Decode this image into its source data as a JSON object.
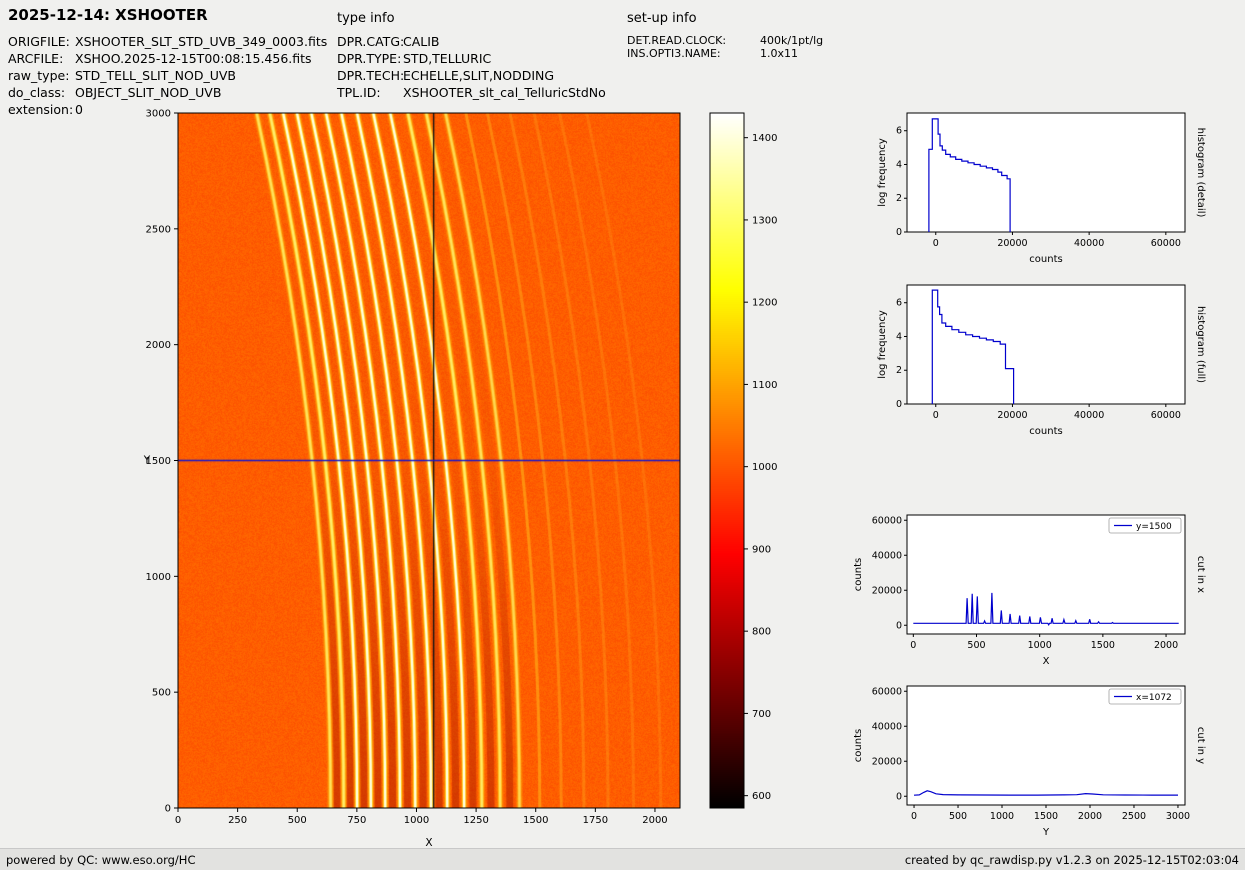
{
  "header": {
    "title": "2025-12-14: XSHOOTER",
    "type_info": "type info",
    "setup_info": "set-up info"
  },
  "metadata": {
    "left": [
      {
        "label": "ORIGFILE:",
        "value": "XSHOOTER_SLT_STD_UVB_349_0003.fits"
      },
      {
        "label": "ARCFILE:",
        "value": "XSHOO.2025-12-15T00:08:15.456.fits"
      },
      {
        "label": "raw_type:",
        "value": "STD_TELL_SLIT_NOD_UVB"
      },
      {
        "label": "do_class:",
        "value": "OBJECT_SLIT_NOD_UVB"
      },
      {
        "label": "extension:",
        "value": "0"
      }
    ],
    "middle": [
      {
        "label": "DPR.CATG:",
        "value": "CALIB"
      },
      {
        "label": "DPR.TYPE:",
        "value": "STD,TELLURIC"
      },
      {
        "label": "DPR.TECH:",
        "value": "ECHELLE,SLIT,NODDING"
      },
      {
        "label": "TPL.ID:",
        "value": "XSHOOTER_slt_cal_TelluricStdNo"
      }
    ],
    "right": [
      {
        "label": "DET.READ.CLOCK:",
        "value": "400k/1pt/lg"
      },
      {
        "label": "INS.OPTI3.NAME:",
        "value": "1.0x11"
      }
    ]
  },
  "footer": {
    "left": "powered by QC: www.eso.org/HC",
    "right": "created by qc_rawdisp.py v1.2.3 on 2025-12-15T02:03:04"
  },
  "chart_data": [
    {
      "name": "raw-frame",
      "type": "heatmap",
      "xlabel": "X",
      "ylabel": "Y",
      "xlim": [
        0,
        2105
      ],
      "ylim": [
        0,
        3000
      ],
      "xticks": [
        0,
        250,
        500,
        750,
        1000,
        1250,
        1500,
        1750,
        2000
      ],
      "yticks": [
        0,
        500,
        1000,
        1500,
        2000,
        2500,
        3000
      ],
      "background_level": 1010,
      "colormap": "hot",
      "colorbar": {
        "vmin": 585,
        "vmax": 1430,
        "ticks": [
          600,
          700,
          800,
          900,
          1000,
          1100,
          1200,
          1300,
          1400
        ]
      },
      "crosshair": {
        "x": 1072,
        "y": 1500,
        "x_color": "#151515",
        "y_color": "#1515cc"
      },
      "orders": [
        {
          "x_bottom": 640,
          "x_top": 330,
          "intensity": 0.72
        },
        {
          "x_bottom": 695,
          "x_top": 385,
          "intensity": 0.88
        },
        {
          "x_bottom": 751,
          "x_top": 441,
          "intensity": 1.0
        },
        {
          "x_bottom": 809,
          "x_top": 499,
          "intensity": 1.0
        },
        {
          "x_bottom": 869,
          "x_top": 559,
          "intensity": 1.0
        },
        {
          "x_bottom": 931,
          "x_top": 621,
          "intensity": 1.0
        },
        {
          "x_bottom": 995,
          "x_top": 685,
          "intensity": 1.0
        },
        {
          "x_bottom": 1061,
          "x_top": 751,
          "intensity": 1.0
        },
        {
          "x_bottom": 1129,
          "x_top": 819,
          "intensity": 0.97
        },
        {
          "x_bottom": 1200,
          "x_top": 890,
          "intensity": 0.92
        },
        {
          "x_bottom": 1274,
          "x_top": 964,
          "intensity": 0.85
        },
        {
          "x_bottom": 1351,
          "x_top": 1041,
          "intensity": 0.75
        },
        {
          "x_bottom": 1432,
          "x_top": 1122,
          "intensity": 0.62
        },
        {
          "x_bottom": 1517,
          "x_top": 1207,
          "intensity": 0.4
        },
        {
          "x_bottom": 1607,
          "x_top": 1297,
          "intensity": 0.28
        },
        {
          "x_bottom": 1702,
          "x_top": 1392,
          "intensity": 0.2
        },
        {
          "x_bottom": 1803,
          "x_top": 1493,
          "intensity": 0.14
        },
        {
          "x_bottom": 1910,
          "x_top": 1600,
          "intensity": 0.1
        },
        {
          "x_bottom": 2024,
          "x_top": 1714,
          "intensity": 0.07
        }
      ]
    },
    {
      "name": "histogram-detail",
      "type": "line",
      "side_label": "histogram (detail)",
      "xlabel": "counts",
      "ylabel": "log frequency",
      "xlim": [
        -7500,
        65000
      ],
      "ylim": [
        0,
        7.05
      ],
      "xticks": [
        0,
        20000,
        40000,
        60000
      ],
      "yticks": [
        0,
        2,
        4,
        6
      ],
      "line_color": "#0000cd",
      "points": [
        [
          -1800,
          0
        ],
        [
          -1800,
          4.9
        ],
        [
          -900,
          4.9
        ],
        [
          -900,
          6.7
        ],
        [
          600,
          6.7
        ],
        [
          600,
          5.8
        ],
        [
          1100,
          5.8
        ],
        [
          1100,
          5.1
        ],
        [
          1700,
          5.1
        ],
        [
          1700,
          4.85
        ],
        [
          2600,
          4.85
        ],
        [
          2600,
          4.6
        ],
        [
          3800,
          4.6
        ],
        [
          3800,
          4.45
        ],
        [
          5200,
          4.45
        ],
        [
          5200,
          4.3
        ],
        [
          6800,
          4.3
        ],
        [
          6800,
          4.2
        ],
        [
          8400,
          4.2
        ],
        [
          8400,
          4.1
        ],
        [
          10000,
          4.1
        ],
        [
          10000,
          4.0
        ],
        [
          11600,
          4.0
        ],
        [
          11600,
          3.9
        ],
        [
          13200,
          3.9
        ],
        [
          13200,
          3.8
        ],
        [
          14800,
          3.8
        ],
        [
          14800,
          3.7
        ],
        [
          16200,
          3.7
        ],
        [
          16200,
          3.55
        ],
        [
          17200,
          3.55
        ],
        [
          17200,
          3.35
        ],
        [
          18600,
          3.35
        ],
        [
          18600,
          3.15
        ],
        [
          19400,
          3.15
        ],
        [
          19400,
          0
        ]
      ]
    },
    {
      "name": "histogram-full",
      "type": "line",
      "side_label": "histogram (full)",
      "xlabel": "counts",
      "ylabel": "log frequency",
      "xlim": [
        -7500,
        65000
      ],
      "ylim": [
        0,
        7.05
      ],
      "xticks": [
        0,
        20000,
        40000,
        60000
      ],
      "yticks": [
        0,
        2,
        4,
        6
      ],
      "line_color": "#0000cd",
      "points": [
        [
          -900,
          0
        ],
        [
          -900,
          6.75
        ],
        [
          500,
          6.75
        ],
        [
          500,
          5.75
        ],
        [
          1000,
          5.75
        ],
        [
          1000,
          5.3
        ],
        [
          1600,
          5.3
        ],
        [
          1600,
          4.8
        ],
        [
          2600,
          4.8
        ],
        [
          2600,
          4.6
        ],
        [
          4200,
          4.6
        ],
        [
          4200,
          4.4
        ],
        [
          6000,
          4.4
        ],
        [
          6000,
          4.25
        ],
        [
          7800,
          4.25
        ],
        [
          7800,
          4.1
        ],
        [
          9600,
          4.1
        ],
        [
          9600,
          4.0
        ],
        [
          11400,
          4.0
        ],
        [
          11400,
          3.9
        ],
        [
          13200,
          3.9
        ],
        [
          13200,
          3.8
        ],
        [
          15000,
          3.8
        ],
        [
          15000,
          3.7
        ],
        [
          16800,
          3.7
        ],
        [
          16800,
          3.55
        ],
        [
          18200,
          3.55
        ],
        [
          18200,
          2.1
        ],
        [
          20300,
          2.1
        ],
        [
          20300,
          0
        ]
      ]
    },
    {
      "name": "cut-in-x",
      "type": "line",
      "side_label": "cut in x",
      "legend": "y=1500",
      "xlabel": "X",
      "ylabel": "counts",
      "xlim": [
        -50,
        2150
      ],
      "ylim": [
        -5000,
        63000
      ],
      "xticks": [
        0,
        500,
        1000,
        1500,
        2000
      ],
      "yticks": [
        0,
        20000,
        40000,
        60000
      ],
      "line_color": "#0000cd",
      "points": [
        [
          0,
          1100
        ],
        [
          380,
          1100
        ],
        [
          418,
          1100
        ],
        [
          426,
          15500
        ],
        [
          434,
          1100
        ],
        [
          458,
          1100
        ],
        [
          466,
          18000
        ],
        [
          474,
          1100
        ],
        [
          498,
          1100
        ],
        [
          506,
          16500
        ],
        [
          514,
          1100
        ],
        [
          556,
          1100
        ],
        [
          564,
          2500
        ],
        [
          572,
          1100
        ],
        [
          614,
          1100
        ],
        [
          622,
          18500
        ],
        [
          630,
          1100
        ],
        [
          688,
          1100
        ],
        [
          696,
          8500
        ],
        [
          704,
          1100
        ],
        [
          758,
          1100
        ],
        [
          766,
          6500
        ],
        [
          774,
          1100
        ],
        [
          834,
          1100
        ],
        [
          842,
          5500
        ],
        [
          850,
          1100
        ],
        [
          914,
          1100
        ],
        [
          922,
          5000
        ],
        [
          930,
          1100
        ],
        [
          998,
          1100
        ],
        [
          1006,
          4500
        ],
        [
          1014,
          1100
        ],
        [
          1064,
          1100
        ],
        [
          1071,
          250
        ],
        [
          1078,
          1100
        ],
        [
          1090,
          1100
        ],
        [
          1098,
          4000
        ],
        [
          1106,
          1100
        ],
        [
          1184,
          1100
        ],
        [
          1192,
          3200
        ],
        [
          1200,
          1100
        ],
        [
          1278,
          1100
        ],
        [
          1286,
          2600
        ],
        [
          1294,
          1100
        ],
        [
          1388,
          1100
        ],
        [
          1396,
          3400
        ],
        [
          1404,
          1100
        ],
        [
          1458,
          1100
        ],
        [
          1466,
          2000
        ],
        [
          1474,
          1100
        ],
        [
          1568,
          1100
        ],
        [
          1576,
          1600
        ],
        [
          1584,
          1100
        ],
        [
          2100,
          1100
        ]
      ]
    },
    {
      "name": "cut-in-y",
      "type": "line",
      "side_label": "cut in y",
      "legend": "x=1072",
      "xlabel": "Y",
      "ylabel": "counts",
      "xlim": [
        -80,
        3080
      ],
      "ylim": [
        -5000,
        63000
      ],
      "xticks": [
        0,
        500,
        1000,
        1500,
        2000,
        2500,
        3000
      ],
      "yticks": [
        0,
        20000,
        40000,
        60000
      ],
      "line_color": "#0000cd",
      "points": [
        [
          0,
          600
        ],
        [
          60,
          800
        ],
        [
          110,
          2200
        ],
        [
          150,
          3100
        ],
        [
          190,
          2600
        ],
        [
          250,
          1400
        ],
        [
          330,
          950
        ],
        [
          500,
          800
        ],
        [
          800,
          700
        ],
        [
          1100,
          680
        ],
        [
          1400,
          680
        ],
        [
          1700,
          750
        ],
        [
          1850,
          900
        ],
        [
          1950,
          1500
        ],
        [
          2030,
          1300
        ],
        [
          2150,
          850
        ],
        [
          2400,
          700
        ],
        [
          2700,
          650
        ],
        [
          3000,
          680
        ]
      ]
    }
  ]
}
